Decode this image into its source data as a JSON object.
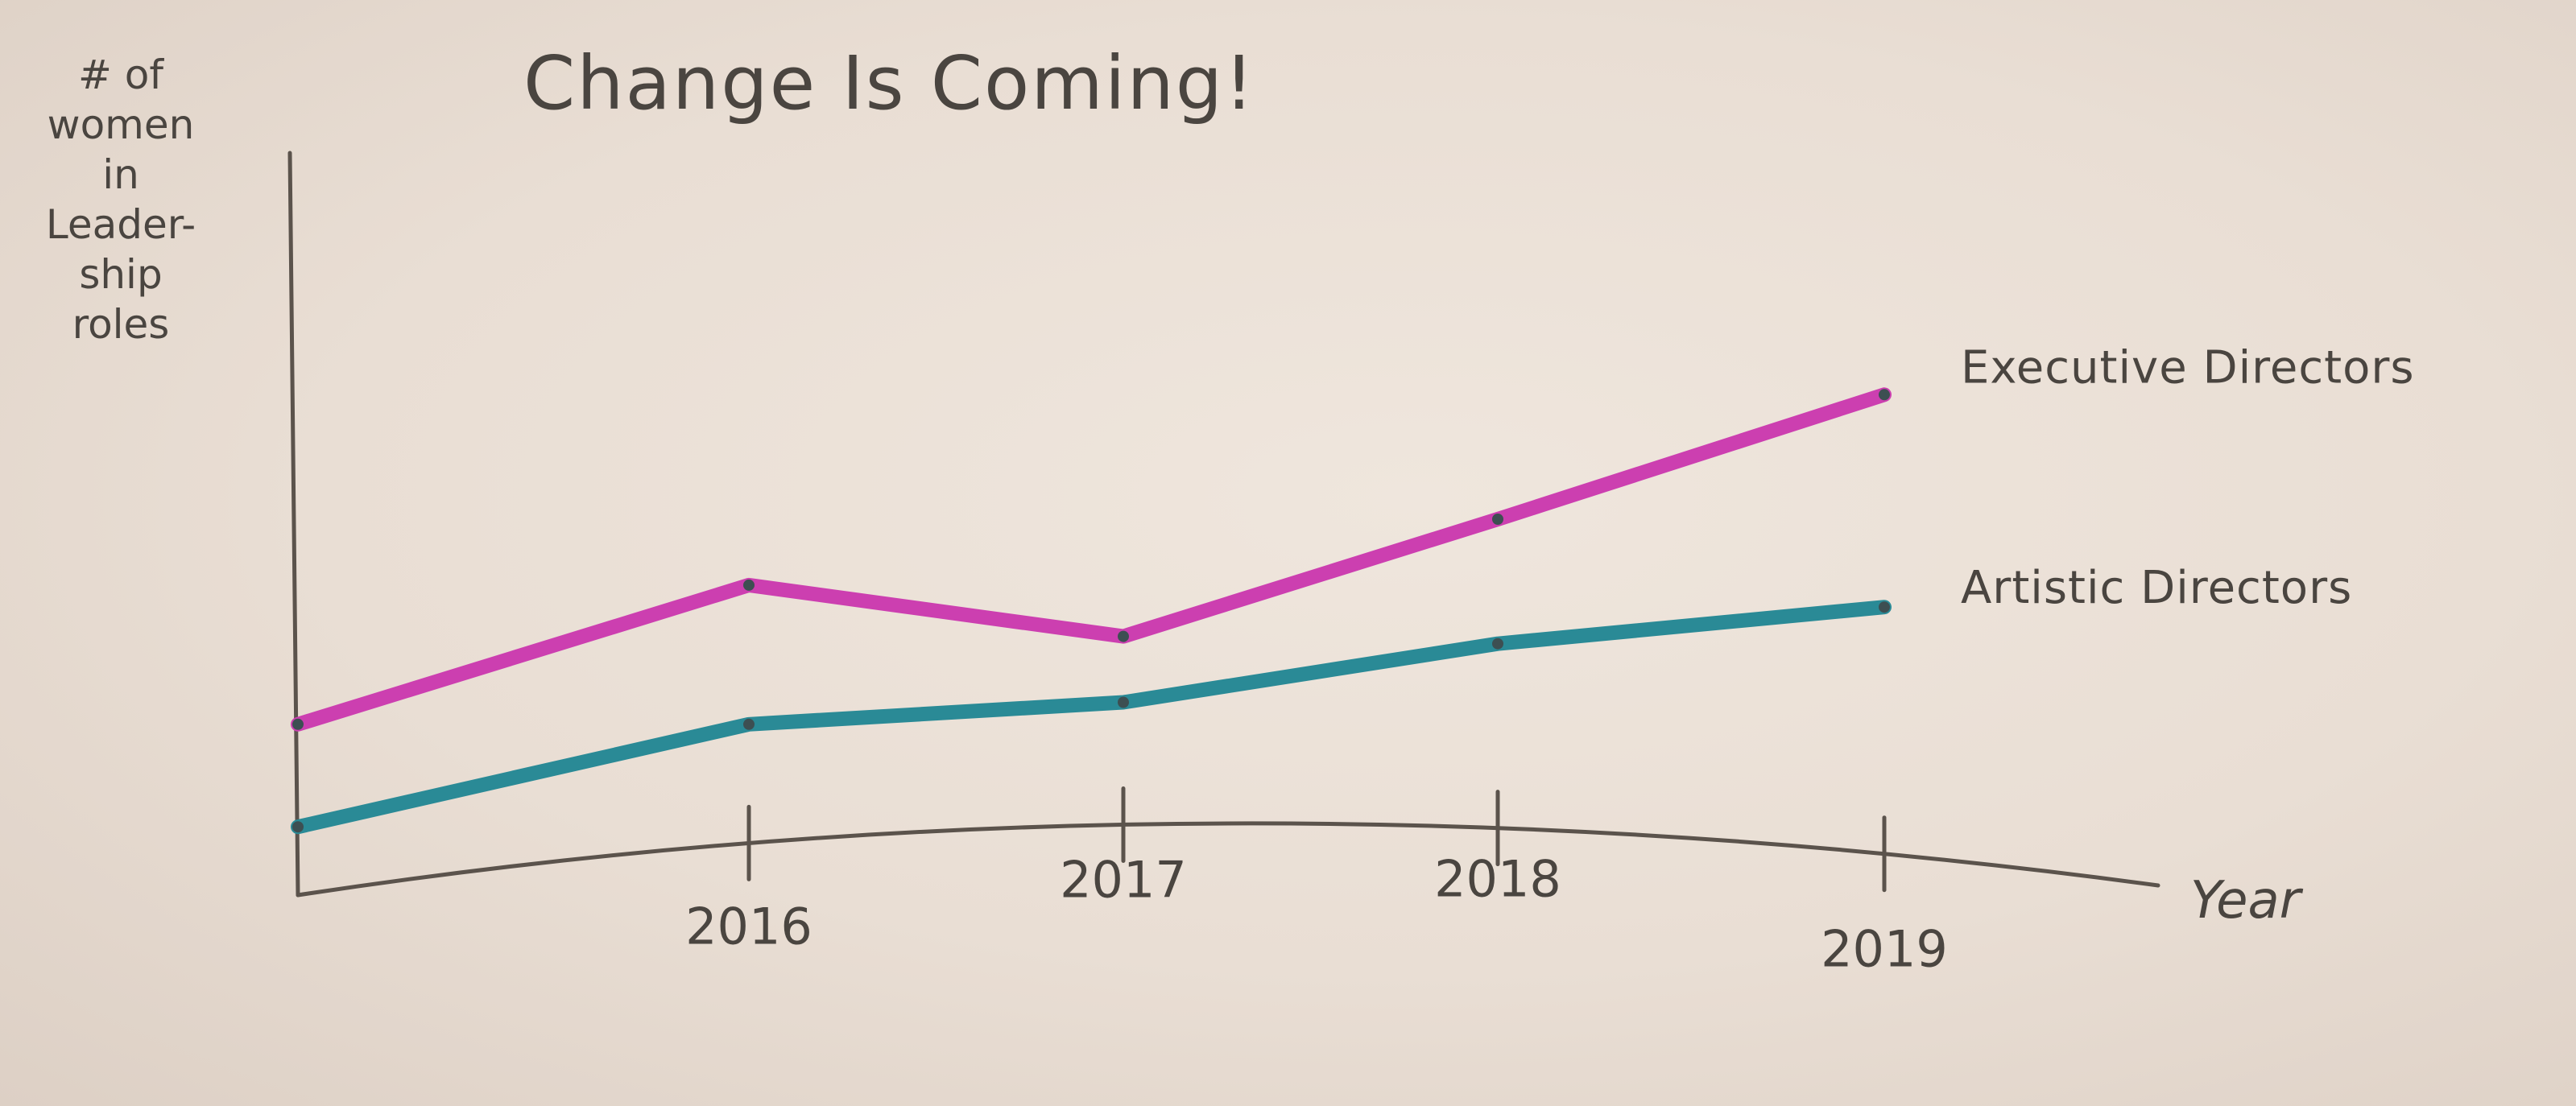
{
  "chart_data": {
    "type": "line",
    "title": "Change Is Coming!",
    "ylabel": "# of women in Leader-ship roles",
    "ylabel_lines": [
      "# of",
      "women",
      "in",
      "Leader-",
      "ship",
      "roles"
    ],
    "xlabel": "Year",
    "x_start": 2015,
    "categories": [
      "2016",
      "2017",
      "2018",
      "2019"
    ],
    "ylim": [
      0,
      10
    ],
    "grid": false,
    "legend": "inline labels at line ends",
    "series": [
      {
        "name": "Executive Directors",
        "color": "#cc3fb0",
        "x": [
          2015,
          2016,
          2017,
          2018,
          2019
        ],
        "values": [
          2.2,
          4.1,
          3.4,
          5.0,
          6.7
        ]
      },
      {
        "name": "Artistic Directors",
        "color": "#2a8a96",
        "x": [
          2015,
          2016,
          2017,
          2018,
          2019
        ],
        "values": [
          0.8,
          2.2,
          2.5,
          3.3,
          3.8
        ]
      }
    ]
  }
}
